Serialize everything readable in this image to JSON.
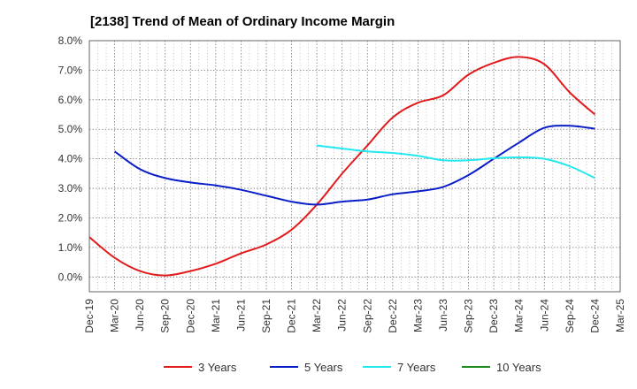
{
  "chart_data": {
    "type": "line",
    "title": "[2138]  Trend of Mean of Ordinary Income Margin",
    "xlabel": "",
    "ylabel": "",
    "ylim": [
      -0.5,
      8.0
    ],
    "y_ticks": [
      "8.0%",
      "7.0%",
      "6.0%",
      "5.0%",
      "4.0%",
      "3.0%",
      "2.0%",
      "1.0%",
      "0.0%"
    ],
    "y_tick_values": [
      8,
      7,
      6,
      5,
      4,
      3,
      2,
      1,
      0
    ],
    "categories": [
      "Dec-19",
      "Mar-20",
      "Jun-20",
      "Sep-20",
      "Dec-20",
      "Mar-21",
      "Jun-21",
      "Sep-21",
      "Dec-21",
      "Mar-22",
      "Jun-22",
      "Sep-22",
      "Dec-22",
      "Mar-23",
      "Jun-23",
      "Sep-23",
      "Dec-23",
      "Mar-24",
      "Jun-24",
      "Sep-24",
      "Dec-24",
      "Mar-25"
    ],
    "grid": true,
    "legend_position": "bottom",
    "series": [
      {
        "name": "3 Years",
        "color": "#e31a1c",
        "values": [
          1.35,
          0.65,
          0.2,
          0.05,
          0.2,
          0.45,
          0.8,
          1.1,
          1.6,
          2.45,
          3.5,
          4.45,
          5.4,
          5.9,
          6.15,
          6.85,
          7.25,
          7.45,
          7.2,
          6.25,
          5.5,
          null
        ]
      },
      {
        "name": "5 Years",
        "color": "#0a1ec8",
        "values": [
          null,
          4.25,
          3.65,
          3.35,
          3.2,
          3.1,
          2.95,
          2.75,
          2.55,
          2.45,
          2.55,
          2.62,
          2.8,
          2.9,
          3.05,
          3.45,
          4.0,
          4.55,
          5.05,
          5.12,
          5.02,
          null
        ]
      },
      {
        "name": "7 Years",
        "color": "#22e8f0",
        "values": [
          null,
          null,
          null,
          null,
          null,
          null,
          null,
          null,
          null,
          4.45,
          4.35,
          4.25,
          4.2,
          4.1,
          3.95,
          3.95,
          4.02,
          4.05,
          4.0,
          3.75,
          3.35,
          null
        ]
      },
      {
        "name": "10 Years",
        "color": "#1a8a1a",
        "values": [
          null,
          null,
          null,
          null,
          null,
          null,
          null,
          null,
          null,
          null,
          null,
          null,
          null,
          null,
          null,
          null,
          null,
          null,
          null,
          null,
          null,
          null
        ]
      }
    ]
  }
}
